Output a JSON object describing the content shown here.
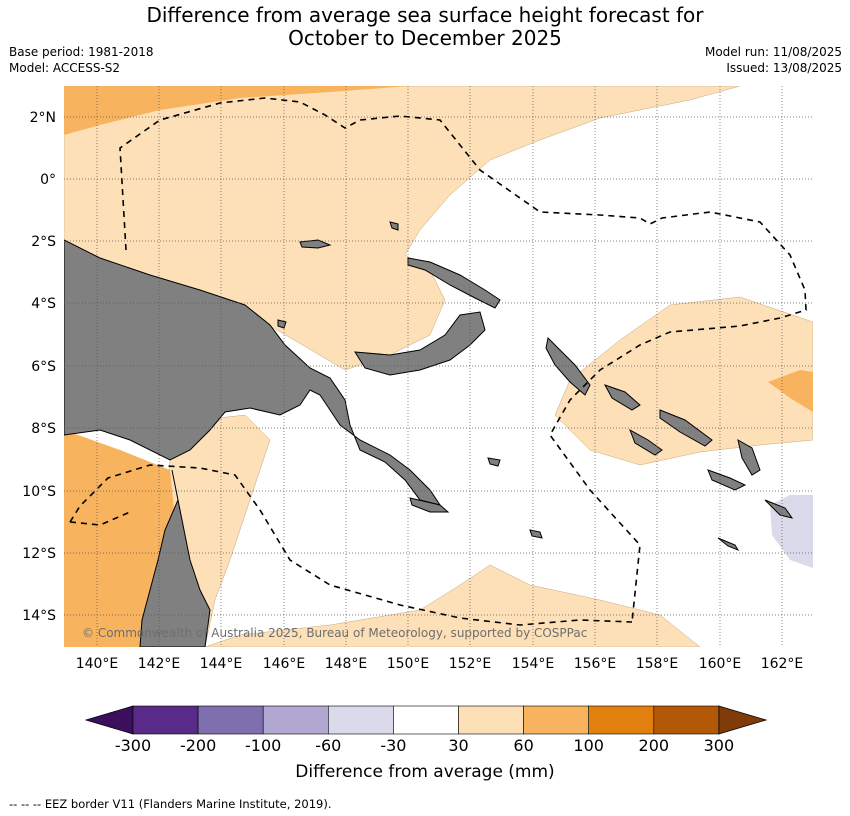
{
  "title_line1": "Difference from average sea surface height forecast for",
  "title_line2": "October to December 2025",
  "base_period": "Base period: 1981-2018",
  "model": "Model: ACCESS-S2",
  "model_run": "Model run: 11/08/2025",
  "issued": "Issued: 13/08/2025",
  "copyright": "© Commonwealth of Australia 2025, Bureau of Meteorology, supported by COSPPac",
  "lat_labels": [
    "2°N",
    "0°",
    "2°S",
    "4°S",
    "6°S",
    "8°S",
    "10°S",
    "12°S",
    "14°S"
  ],
  "lon_labels": [
    "140°E",
    "142°E",
    "144°E",
    "146°E",
    "148°E",
    "150°E",
    "152°E",
    "154°E",
    "156°E",
    "158°E",
    "160°E",
    "162°E"
  ],
  "colorbar": {
    "labels": [
      "-300",
      "-200",
      "-100",
      "-60",
      "-30",
      "30",
      "60",
      "100",
      "200",
      "300"
    ],
    "colors": [
      "#3b0f5e",
      "#5a2a8a",
      "#7f6fae",
      "#b1a8d2",
      "#dadaea",
      "#ffffff",
      "#fde0b8",
      "#f8b35e",
      "#e2800f",
      "#b35806",
      "#7f3b08"
    ],
    "title": "Difference from average (mm)"
  },
  "colors": {
    "land": "#808080",
    "light_orange": "#fde0b8",
    "mid_orange": "#f8b35e",
    "light_purple": "#dadaea"
  },
  "footer": "--  --  -- EEZ border V11 (Flanders Marine Institute, 2019)."
}
